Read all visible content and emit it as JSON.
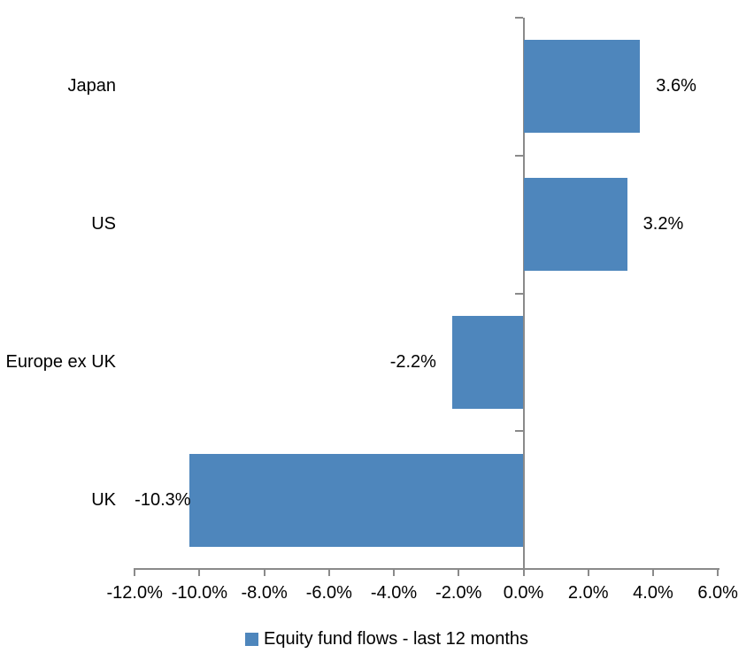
{
  "chart_data": {
    "type": "bar",
    "orientation": "horizontal",
    "categories": [
      "Japan",
      "US",
      "Europe ex UK",
      "UK"
    ],
    "values": [
      3.6,
      3.2,
      -2.2,
      -10.3
    ],
    "data_labels": [
      "3.6%",
      "3.2%",
      "-2.2%",
      "-10.3%"
    ],
    "series": [
      {
        "name": "Equity fund flows - last 12 months",
        "values": [
          3.6,
          3.2,
          -2.2,
          -10.3
        ]
      }
    ],
    "x_ticks": [
      -12,
      -10,
      -8,
      -6,
      -4,
      -2,
      0,
      2,
      4,
      6
    ],
    "x_tick_labels": [
      "-12.0%",
      "-10.0%",
      "-8.0%",
      "-6.0%",
      "-4.0%",
      "-2.0%",
      "0.0%",
      "2.0%",
      "4.0%",
      "6.0%"
    ],
    "xlim": [
      -12,
      6
    ],
    "grid": false,
    "legend": {
      "label": "Equity fund flows - last 12 months",
      "position": "bottom",
      "marker": "square"
    },
    "bar_color": "#4E86BC",
    "axis_color": "#8A8A8A",
    "text_color": "#000000",
    "background": "#FFFFFF"
  }
}
